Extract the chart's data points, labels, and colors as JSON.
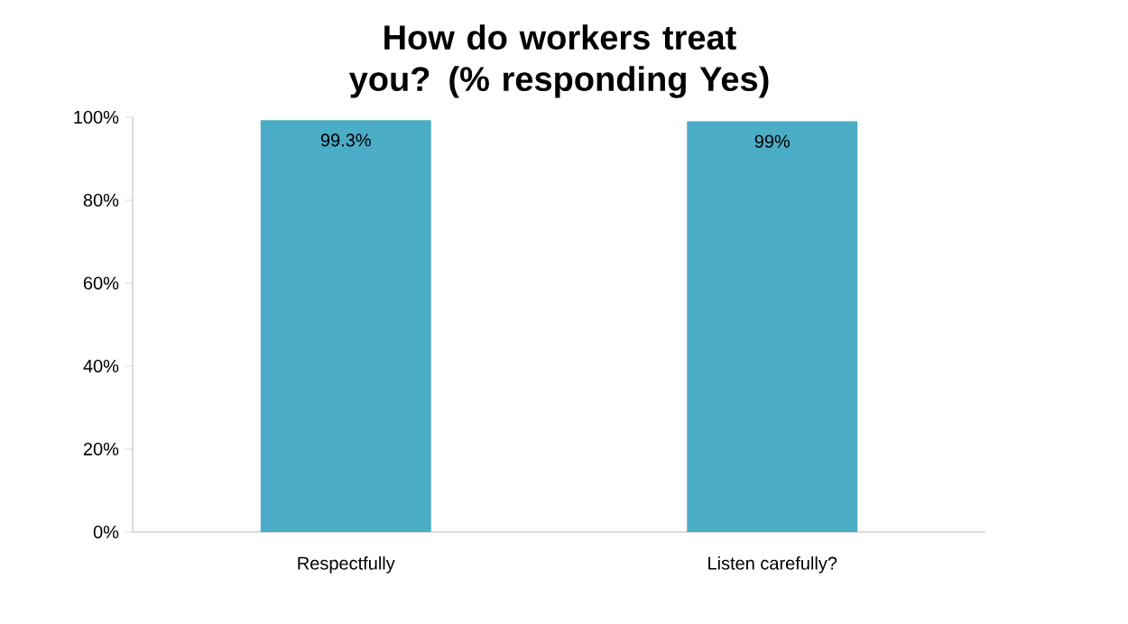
{
  "chart_data": {
    "type": "bar",
    "title": "How do workers treat you? (% responding Yes)",
    "categories": [
      "Respectfully",
      "Listen carefully?"
    ],
    "values": [
      99.3,
      99
    ],
    "value_labels": [
      "99.3%",
      "99%"
    ],
    "color": "#4bacc6",
    "ylim": [
      0,
      100
    ],
    "yticks": [
      {
        "value": 0,
        "label": "0%"
      },
      {
        "value": 20,
        "label": "20%"
      },
      {
        "value": 40,
        "label": "40%"
      },
      {
        "value": 60,
        "label": "60%"
      },
      {
        "value": 80,
        "label": "80%"
      },
      {
        "value": 100,
        "label": "100%"
      }
    ],
    "grid": false
  }
}
